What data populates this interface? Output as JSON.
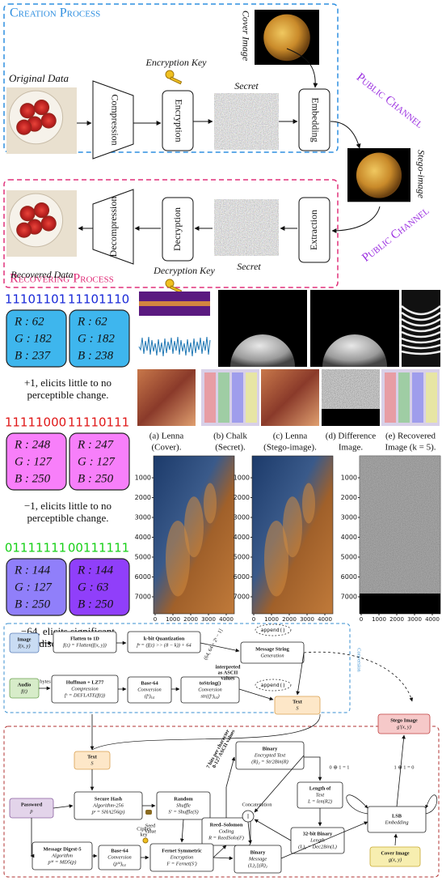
{
  "creation": {
    "title": "Creation Process",
    "cover_label": "Cover Image",
    "encryption_key": "Encryption Key",
    "original_data": "Original Data",
    "compression": "Compression",
    "encryption": "Encryption",
    "secret": "Secret",
    "embedding": "Embedding",
    "public_channel": "Public Channel",
    "stego_label": "Stego-image"
  },
  "recovering": {
    "title": "Recovering Process",
    "recovered_data": "Recovered Data",
    "decompression": "Decompression",
    "decryption": "Decryption",
    "decryption_key": "Decryption Key",
    "secret": "Secret",
    "extraction": "Extraction",
    "public_channel": "Public Channel"
  },
  "pixels": [
    {
      "bits": [
        "11101101",
        "11101110"
      ],
      "boxes": [
        [
          "R : 62",
          "G : 182",
          "B : 237"
        ],
        [
          "R : 62",
          "G : 182",
          "B : 238"
        ]
      ],
      "caption": [
        "+1, elicits little to no",
        "perceptible change."
      ]
    },
    {
      "bits": [
        "11111000",
        "11110111"
      ],
      "boxes": [
        [
          "R : 248",
          "G : 127",
          "B : 250"
        ],
        [
          "R : 247",
          "G : 127",
          "B : 250"
        ]
      ],
      "caption": [
        "−1, elicits little to no",
        "perceptible change."
      ]
    },
    {
      "bits": [
        "01111111",
        "00111111"
      ],
      "boxes": [
        [
          "R : 144",
          "G : 127",
          "B : 250"
        ],
        [
          "R : 144",
          "G : 63",
          "B : 250"
        ]
      ],
      "caption": [
        "−64, elicits significant",
        "discoloration."
      ]
    }
  ],
  "figures": {
    "captions": [
      [
        "(a) Lenna",
        "(Cover)."
      ],
      [
        "(b) Chalk",
        "(Secret)."
      ],
      [
        "(c) Lenna",
        "(Stego-image)."
      ],
      [
        "(d) Difference",
        "Image."
      ],
      [
        "(e) Recovered",
        "Image (k = 5)."
      ]
    ],
    "yticks": [
      "1000",
      "2000",
      "3000",
      "4000",
      "5000",
      "6000",
      "7000"
    ],
    "xticks": [
      "0",
      "1000",
      "2000",
      "3000",
      "4000"
    ]
  },
  "pipeline": {
    "conversion": "Conversion",
    "encoding": "Encoding",
    "image": [
      "Image",
      "f(x, y)"
    ],
    "flatten": [
      "Flatten to 1D",
      "f(z) = Flatten(f(x, y))"
    ],
    "quant": [
      "k-bit Quantization",
      "fᵠ = (f(z) >> (8 − k)) + 64"
    ],
    "range": "(64, 64 + 2ᵏ − 1]",
    "ascii": [
      "interpreted",
      "as ASCII",
      "values"
    ],
    "msg": [
      "Message String",
      "Generation"
    ],
    "append": [
      "append()",
      "append()"
    ],
    "audio": [
      "Audio",
      "f(t)"
    ],
    "bytes": "bytes",
    "huff": [
      "Huffman + LZ77",
      "Compression",
      "fᶜ = DEFLATE(f(t))"
    ],
    "b64a": [
      "Base-64",
      "Conversion",
      "(fᶜ)₆₄"
    ],
    "tostr": [
      "toString()",
      "Conversion",
      "str((fᶜ)₆₄)"
    ],
    "text1": [
      "Text",
      "S"
    ],
    "text2": [
      "Text",
      "S"
    ],
    "bits7": [
      "7 bits per character",
      "0-127 ASCII values"
    ],
    "binenc": [
      "Binary",
      "Encrypted Text",
      "(R)₂ = Str2Bin(R)"
    ],
    "len": [
      "Length of",
      "Text",
      "L = len(R2)"
    ],
    "concat": "Concatenation",
    "pipe": "||",
    "b32": [
      "32-bit Binary",
      "Length",
      "(L)₂ = Dec2Bin(L)"
    ],
    "password": [
      "Password",
      "p"
    ],
    "sha": [
      "Secure Hash",
      "Algorithm-256",
      "pˢ = SHA256(p)"
    ],
    "seed": [
      "Seed",
      "Value"
    ],
    "shuffle": [
      "Random",
      "Shuffle",
      "S′ = Shuffle(S)"
    ],
    "rs": [
      "Reed–Solomon",
      "Coding",
      "R = ReedSolo(F)"
    ],
    "binmsg": [
      "Binary",
      "Message",
      "(L)₂||(R)₂"
    ],
    "md5": [
      "Message Digest-5",
      "Algorithm",
      "pᴹ = MD5(p)"
    ],
    "b64b": [
      "Base-64",
      "Conversion",
      "(pᴹ)₆₄"
    ],
    "cipher": [
      "Cipher",
      "key"
    ],
    "fernet": [
      "Fernet Symmetric",
      "Encryption",
      "F = Fernet(S′)"
    ],
    "stego": [
      "Stego Image",
      "g′(x, y)"
    ],
    "lsb": [
      "LSB",
      "Embedding"
    ],
    "xor": [
      "0 ⊕ 1 = 1",
      "1 ⊕ 1 = 0"
    ],
    "cover": [
      "Cover Image",
      "g(x, y)"
    ]
  }
}
